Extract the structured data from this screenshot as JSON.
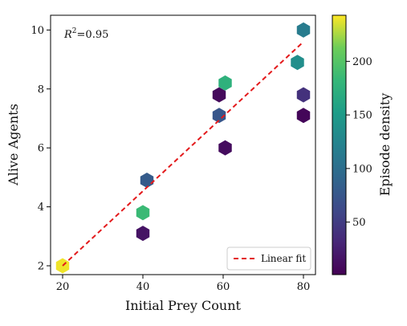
{
  "chart_data": {
    "type": "scatter",
    "subtype": "hexbin",
    "xlabel": "Initial Prey Count",
    "ylabel": "Alive Agents",
    "xlim": [
      17,
      83
    ],
    "ylim": [
      1.7,
      10.5
    ],
    "x_ticks": [
      20,
      40,
      60,
      80
    ],
    "y_ticks": [
      2,
      4,
      6,
      8,
      10
    ],
    "points": [
      {
        "x": 20,
        "y": 2.0,
        "density": 240
      },
      {
        "x": 40,
        "y": 3.1,
        "density": 15
      },
      {
        "x": 40,
        "y": 3.8,
        "density": 185
      },
      {
        "x": 41,
        "y": 4.9,
        "density": 80
      },
      {
        "x": 59,
        "y": 7.8,
        "density": 8
      },
      {
        "x": 59,
        "y": 7.1,
        "density": 75
      },
      {
        "x": 60.5,
        "y": 8.2,
        "density": 175
      },
      {
        "x": 60.5,
        "y": 6.0,
        "density": 10
      },
      {
        "x": 78.5,
        "y": 8.9,
        "density": 135
      },
      {
        "x": 80,
        "y": 10.0,
        "density": 115
      },
      {
        "x": 80,
        "y": 7.8,
        "density": 40
      },
      {
        "x": 80,
        "y": 7.1,
        "density": 5
      }
    ],
    "fit": {
      "name": "Linear fit",
      "x": [
        20,
        80
      ],
      "y": [
        2.0,
        9.6
      ],
      "color": "#e31a1c"
    },
    "annotation": {
      "label": "R",
      "superscript": "2",
      "value": "=0.95"
    },
    "colorbar": {
      "label": "Episode density",
      "range": [
        1,
        243
      ],
      "ticks": [
        50,
        100,
        150,
        200
      ],
      "colormap": "viridis"
    },
    "legend_position": "lower-right",
    "grid": false
  }
}
